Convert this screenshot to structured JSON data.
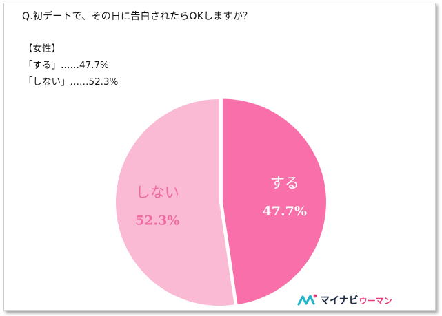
{
  "question": "Q.初デートで、その日に告白されたらOKしますか？",
  "group_label": "【女性】",
  "answers": [
    {
      "text": "「する」……47.7%"
    },
    {
      "text": "「しない」……52.3%"
    }
  ],
  "chart_data": {
    "type": "pie",
    "slices": [
      {
        "label": "する",
        "value": 47.7,
        "value_text": "47.7%",
        "color": "#f86fa9",
        "text_color": "#ffffff"
      },
      {
        "label": "しない",
        "value": 52.3,
        "value_text": "52.3%",
        "color": "#fabad4",
        "text_color": "#f06ba2"
      }
    ],
    "start": "12 o'clock",
    "direction": "clockwise",
    "exploded_slice": "する"
  },
  "logo": {
    "main": "マイナビ",
    "sub": "ウーマン",
    "colors": {
      "mark": "#22b3c9",
      "accent": "#e63b7a",
      "text": "#1f2a44"
    }
  }
}
